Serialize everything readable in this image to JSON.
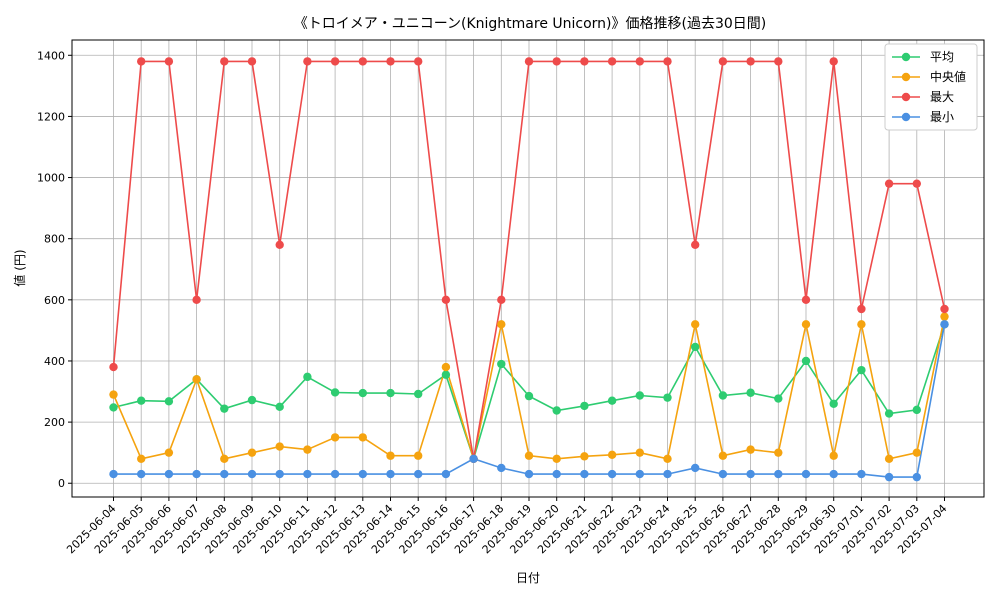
{
  "chart_data": {
    "type": "line",
    "title": "《トロイメア・ユニコーン(Knightmare Unicorn)》価格推移(過去30日間)",
    "xlabel": "日付",
    "ylabel": "値 (円)",
    "ylim": [
      -45,
      1450
    ],
    "yticks": [
      0,
      200,
      400,
      600,
      800,
      1000,
      1200,
      1400
    ],
    "grid": true,
    "legend_position": "top-right",
    "categories": [
      "2025-06-04",
      "2025-06-05",
      "2025-06-06",
      "2025-06-07",
      "2025-06-08",
      "2025-06-09",
      "2025-06-10",
      "2025-06-11",
      "2025-06-12",
      "2025-06-13",
      "2025-06-14",
      "2025-06-15",
      "2025-06-16",
      "2025-06-17",
      "2025-06-18",
      "2025-06-19",
      "2025-06-20",
      "2025-06-21",
      "2025-06-22",
      "2025-06-23",
      "2025-06-24",
      "2025-06-25",
      "2025-06-26",
      "2025-06-27",
      "2025-06-28",
      "2025-06-29",
      "2025-06-30",
      "2025-07-01",
      "2025-07-02",
      "2025-07-03",
      "2025-07-04"
    ],
    "series": [
      {
        "name": "平均",
        "color": "#2ecc71",
        "values": [
          248,
          270,
          268,
          340,
          244,
          272,
          250,
          348,
          297,
          295,
          295,
          292,
          355,
          80,
          390,
          285,
          238,
          253,
          270,
          287,
          280,
          446,
          287,
          296,
          277,
          400,
          260,
          370,
          228,
          240,
          520
        ]
      },
      {
        "name": "中央値",
        "color": "#f5a30f",
        "values": [
          290,
          80,
          100,
          340,
          80,
          100,
          120,
          110,
          150,
          150,
          90,
          90,
          380,
          80,
          520,
          90,
          80,
          88,
          93,
          100,
          80,
          520,
          90,
          110,
          100,
          520,
          90,
          520,
          80,
          100,
          545
        ]
      },
      {
        "name": "最大",
        "color": "#ee4b4b",
        "values": [
          380,
          1380,
          1380,
          600,
          1380,
          1380,
          780,
          1380,
          1380,
          1380,
          1380,
          1380,
          600,
          80,
          600,
          1380,
          1380,
          1380,
          1380,
          1380,
          1380,
          780,
          1380,
          1380,
          1380,
          600,
          1380,
          570,
          980,
          980,
          570
        ]
      },
      {
        "name": "最小",
        "color": "#4a90e2",
        "values": [
          30,
          30,
          30,
          30,
          30,
          30,
          30,
          30,
          30,
          30,
          30,
          30,
          30,
          80,
          50,
          30,
          30,
          30,
          30,
          30,
          30,
          50,
          30,
          30,
          30,
          30,
          30,
          30,
          20,
          20,
          520
        ]
      }
    ]
  }
}
